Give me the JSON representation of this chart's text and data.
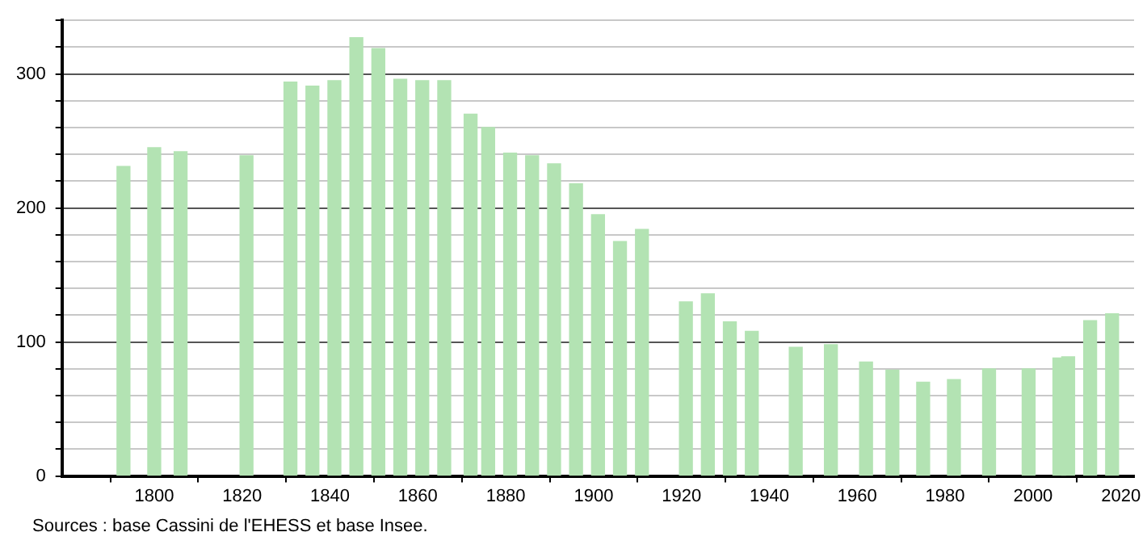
{
  "chart_data": {
    "type": "bar",
    "annotations": [
      "Sources : base Cassini de l'EHESS et base Insee."
    ],
    "x": [
      1793,
      1800,
      1806,
      1821,
      1831,
      1836,
      1841,
      1846,
      1851,
      1856,
      1861,
      1866,
      1872,
      1876,
      1881,
      1886,
      1891,
      1896,
      1901,
      1906,
      1911,
      1921,
      1926,
      1931,
      1936,
      1946,
      1954,
      1962,
      1968,
      1975,
      1982,
      1990,
      1999,
      2006,
      2008,
      2013,
      2018
    ],
    "values": [
      231,
      245,
      242,
      239,
      294,
      291,
      295,
      327,
      319,
      296,
      295,
      295,
      270,
      260,
      241,
      239,
      233,
      218,
      195,
      175,
      184,
      130,
      136,
      115,
      108,
      96,
      98,
      85,
      79,
      70,
      72,
      80,
      80,
      88,
      89,
      116,
      121
    ],
    "color": "#b3e3b3",
    "xlim": [
      1779,
      2023
    ],
    "xticks": [
      1800,
      1820,
      1840,
      1860,
      1880,
      1900,
      1920,
      1940,
      1960,
      1980,
      2000,
      2020
    ],
    "ylim": [
      0,
      340
    ],
    "yticks": [
      0,
      {
        "value": 20,
        "label": null
      },
      {
        "value": 40,
        "label": null
      },
      {
        "value": 60,
        "label": null
      },
      {
        "value": 80,
        "label": null
      },
      100,
      {
        "value": 120,
        "label": null
      },
      {
        "value": 140,
        "label": null
      },
      {
        "value": 160,
        "label": null
      },
      {
        "value": 180,
        "label": null
      },
      200,
      {
        "value": 220,
        "label": null
      },
      {
        "value": 240,
        "label": null
      },
      {
        "value": 260,
        "label": null
      },
      {
        "value": 280,
        "label": null
      },
      300,
      {
        "value": 320,
        "label": null
      },
      {
        "value": 340,
        "label": null
      }
    ],
    "grid": "y",
    "legend": false
  }
}
